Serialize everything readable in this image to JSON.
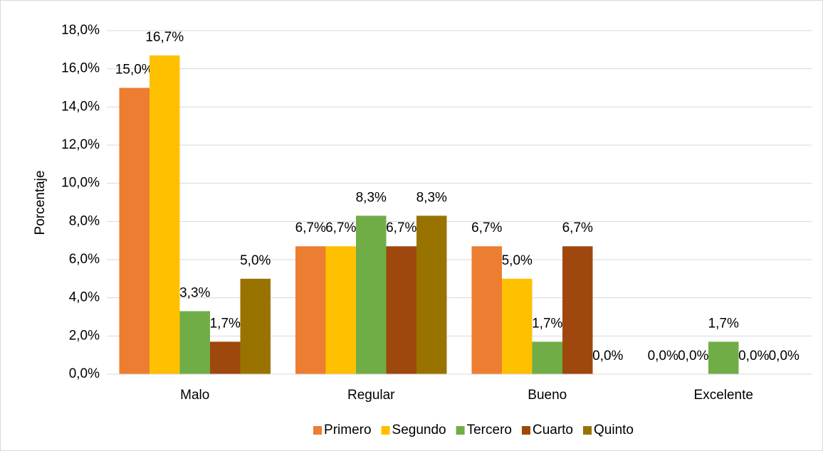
{
  "chart_data": {
    "type": "bar",
    "y_label": "Porcentaje",
    "categories": [
      "Malo",
      "Regular",
      "Bueno",
      "Excelente"
    ],
    "series": [
      {
        "name": "Primero",
        "color": "#ed7d31",
        "values": [
          15.0,
          6.7,
          6.7,
          0.0
        ],
        "value_labels": [
          "15,0%",
          "6,7%",
          "6,7%",
          "0,0%"
        ]
      },
      {
        "name": "Segundo",
        "color": "#ffc000",
        "values": [
          16.7,
          6.7,
          5.0,
          0.0
        ],
        "value_labels": [
          "16,7%",
          "6,7%",
          "5,0%",
          "0,0%"
        ]
      },
      {
        "name": "Tercero",
        "color": "#70ad47",
        "values": [
          3.3,
          8.3,
          1.7,
          1.7
        ],
        "value_labels": [
          "3,3%",
          "8,3%",
          "1,7%",
          "1,7%"
        ]
      },
      {
        "name": "Cuarto",
        "color": "#9e480e",
        "values": [
          1.7,
          6.7,
          6.7,
          0.0
        ],
        "value_labels": [
          "1,7%",
          "6,7%",
          "6,7%",
          "0,0%"
        ]
      },
      {
        "name": "Quinto",
        "color": "#997300",
        "values": [
          5.0,
          8.3,
          0.0,
          0.0
        ],
        "value_labels": [
          "5,0%",
          "8,3%",
          "0,0%",
          "0,0%"
        ]
      }
    ],
    "ylim": [
      0,
      18
    ],
    "yticks": [
      {
        "value": 0,
        "label": "0,0%"
      },
      {
        "value": 2,
        "label": "2,0%"
      },
      {
        "value": 4,
        "label": "4,0%"
      },
      {
        "value": 6,
        "label": "6,0%"
      },
      {
        "value": 8,
        "label": "8,0%"
      },
      {
        "value": 10,
        "label": "10,0%"
      },
      {
        "value": 12,
        "label": "12,0%"
      },
      {
        "value": 14,
        "label": "14,0%"
      },
      {
        "value": 16,
        "label": "16,0%"
      },
      {
        "value": 18,
        "label": "18,0%"
      }
    ],
    "grid": true,
    "legend": "bottom"
  }
}
